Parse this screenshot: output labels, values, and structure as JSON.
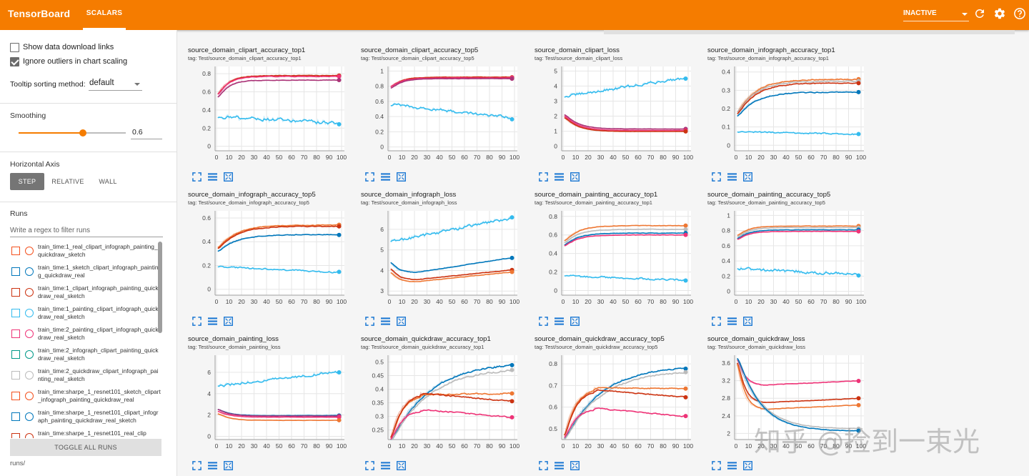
{
  "topbar": {
    "brand": "TensorBoard",
    "tab_scalars": "SCALARS",
    "status_select": "INACTIVE",
    "icons": [
      "refresh-icon",
      "settings-icon",
      "help-icon"
    ]
  },
  "sidebar": {
    "show_download": "Show data download links",
    "ignore_outliers": "Ignore outliers in chart scaling",
    "tooltip_label": "Tooltip sorting method:",
    "tooltip_value": "default",
    "smoothing_label": "Smoothing",
    "smoothing_value": "0.6",
    "smoothing_fraction": 0.6,
    "haxis_label": "Horizontal Axis",
    "haxis_options": [
      "STEP",
      "RELATIVE",
      "WALL"
    ],
    "runs_label": "Runs",
    "runs_filter_placeholder": "Write a regex to filter runs",
    "toggle_all": "TOGGLE ALL RUNS",
    "footer": "runs/",
    "runs": [
      {
        "label": "train_time:1_real_clipart_infograph_painting_quickdraw_sketch",
        "color": "#f4511e"
      },
      {
        "label": "train_time:1_sketch_clipart_infograph_painting_quickdraw_real",
        "color": "#0077bb"
      },
      {
        "label": "train_time:1_clipart_infograph_painting_quickdraw_real_sketch",
        "color": "#cc3311"
      },
      {
        "label": "train_time:1_painting_clipart_infograph_quickdraw_real_sketch",
        "color": "#33bbee"
      },
      {
        "label": "train_time:2_painting_clipart_infograph_quickdraw_real_sketch",
        "color": "#ee3377"
      },
      {
        "label": "train_time:2_infograph_clipart_painting_quickdraw_real_sketch",
        "color": "#009988"
      },
      {
        "label": "train_time:2_quickdraw_clipart_infograph_painting_real_sketch",
        "color": "#bbbbbb"
      },
      {
        "label": "train_time:sharpe_1_resnet101_sketch_clipart_infograph_painting_quickdraw_real",
        "color": "#f4511e"
      },
      {
        "label": "train_time:sharpe_1_resnet101_clipart_infograph_painting_quickdraw_real_sketch",
        "color": "#0077bb"
      },
      {
        "label": "train_time:sharpe_1_resnet101_real_clip",
        "color": "#cc3311"
      }
    ]
  },
  "watermark": "知乎 @捡到一束光",
  "chart_data": [
    {
      "type": "line",
      "title": "source_domain_clipart_accuracy_top1",
      "tag": "tag: Test/source_domain_clipart_accuracy_top1",
      "x_ticks": [
        0,
        10,
        20,
        30,
        40,
        50,
        60,
        70,
        80,
        90,
        100
      ],
      "y_ticks": [
        0,
        0.2,
        0.4,
        0.6,
        0.8
      ],
      "y_tick_labels": [
        "0",
        "0.2",
        "0.4",
        "0.6",
        "0.8"
      ],
      "ylim": [
        -0.05,
        0.88
      ],
      "xlim": [
        0,
        100
      ],
      "series": [
        {
          "color": "#cc3311",
          "profile": "sat",
          "start": 0.55,
          "end": 0.78,
          "k": 8,
          "noise": 0.005
        },
        {
          "color": "#ee3377",
          "profile": "sat",
          "start": 0.55,
          "end": 0.77,
          "k": 8,
          "noise": 0.005
        },
        {
          "color": "#aa3377",
          "profile": "sat",
          "start": 0.52,
          "end": 0.73,
          "k": 8,
          "noise": 0.005
        },
        {
          "color": "#33bbee",
          "profile": "lin",
          "start": 0.33,
          "end": 0.25,
          "k": 0,
          "noise": 0.03
        }
      ]
    },
    {
      "type": "line",
      "title": "source_domain_clipart_accuracy_top5",
      "tag": "tag: Test/source_domain_clipart_accuracy_top5",
      "x_ticks": [
        0,
        10,
        20,
        30,
        40,
        50,
        60,
        70,
        80,
        90,
        100
      ],
      "y_ticks": [
        0,
        0.2,
        0.4,
        0.6,
        0.8,
        1
      ],
      "y_tick_labels": [
        "0",
        "0.2",
        "0.4",
        "0.6",
        "0.8",
        "1"
      ],
      "ylim": [
        -0.05,
        1.06
      ],
      "xlim": [
        0,
        100
      ],
      "series": [
        {
          "color": "#cc3311",
          "profile": "sat",
          "start": 0.78,
          "end": 0.92,
          "k": 8,
          "noise": 0.004
        },
        {
          "color": "#ee3377",
          "profile": "sat",
          "start": 0.78,
          "end": 0.91,
          "k": 8,
          "noise": 0.004
        },
        {
          "color": "#aa3377",
          "profile": "sat",
          "start": 0.76,
          "end": 0.9,
          "k": 8,
          "noise": 0.004
        },
        {
          "color": "#33bbee",
          "profile": "lin",
          "start": 0.56,
          "end": 0.38,
          "k": 0,
          "noise": 0.03
        }
      ]
    },
    {
      "type": "line",
      "title": "source_domain_clipart_loss",
      "tag": "tag: Test/source_domain_clipart_loss",
      "x_ticks": [
        0,
        10,
        20,
        30,
        40,
        50,
        60,
        70,
        80,
        90,
        100
      ],
      "y_ticks": [
        0,
        1,
        2,
        3,
        4,
        5
      ],
      "y_tick_labels": [
        "0",
        "1",
        "2",
        "3",
        "4",
        "5"
      ],
      "ylim": [
        -0.3,
        5.3
      ],
      "xlim": [
        0,
        100
      ],
      "series": [
        {
          "color": "#33bbee",
          "profile": "lin",
          "start": 3.3,
          "end": 4.6,
          "k": 0,
          "noise": 0.15
        },
        {
          "color": "#aa3377",
          "profile": "decay",
          "start": 2.2,
          "end": 1.15,
          "k": 10,
          "noise": 0.01
        },
        {
          "color": "#ee3377",
          "profile": "decay",
          "start": 2.1,
          "end": 1.05,
          "k": 10,
          "noise": 0.01
        },
        {
          "color": "#cc3311",
          "profile": "decay",
          "start": 2.0,
          "end": 0.98,
          "k": 10,
          "noise": 0.01
        }
      ]
    },
    {
      "type": "line",
      "title": "source_domain_infograph_accuracy_top1",
      "tag": "tag: Test/source_domain_infograph_accuracy_top1",
      "x_ticks": [
        0,
        10,
        20,
        30,
        40,
        50,
        60,
        70,
        80,
        90,
        100
      ],
      "y_ticks": [
        0,
        0.1,
        0.2,
        0.3,
        0.4
      ],
      "y_tick_labels": [
        "0",
        "0.1",
        "0.2",
        "0.3",
        "0.4"
      ],
      "ylim": [
        -0.03,
        0.43
      ],
      "xlim": [
        0,
        100
      ],
      "series": [
        {
          "color": "#ee7733",
          "profile": "sat",
          "start": 0.17,
          "end": 0.36,
          "k": 14,
          "noise": 0.004
        },
        {
          "color": "#bbbbbb",
          "profile": "sat",
          "start": 0.17,
          "end": 0.35,
          "k": 14,
          "noise": 0.004
        },
        {
          "color": "#cc3311",
          "profile": "sat",
          "start": 0.16,
          "end": 0.34,
          "k": 14,
          "noise": 0.004
        },
        {
          "color": "#0077bb",
          "profile": "sat",
          "start": 0.15,
          "end": 0.29,
          "k": 14,
          "noise": 0.004
        },
        {
          "color": "#33bbee",
          "profile": "lin",
          "start": 0.075,
          "end": 0.06,
          "k": 0,
          "noise": 0.006
        }
      ]
    },
    {
      "type": "line",
      "title": "source_domain_infograph_accuracy_top5",
      "tag": "tag: Test/source_domain_infograph_accuracy_top5",
      "x_ticks": [
        0,
        10,
        20,
        30,
        40,
        50,
        60,
        70,
        80,
        90,
        100
      ],
      "y_ticks": [
        0,
        0.2,
        0.4,
        0.6
      ],
      "y_tick_labels": [
        "0",
        "0.2",
        "0.4",
        "0.6"
      ],
      "ylim": [
        -0.05,
        0.66
      ],
      "xlim": [
        0,
        100
      ],
      "series": [
        {
          "color": "#ee7733",
          "profile": "sat",
          "start": 0.34,
          "end": 0.54,
          "k": 14,
          "noise": 0.005
        },
        {
          "color": "#cc3311",
          "profile": "sat",
          "start": 0.33,
          "end": 0.53,
          "k": 14,
          "noise": 0.005
        },
        {
          "color": "#0077bb",
          "profile": "sat",
          "start": 0.31,
          "end": 0.46,
          "k": 14,
          "noise": 0.005
        },
        {
          "color": "#33bbee",
          "profile": "lin",
          "start": 0.19,
          "end": 0.14,
          "k": 0,
          "noise": 0.01
        }
      ]
    },
    {
      "type": "line",
      "title": "source_domain_infograph_loss",
      "tag": "tag: Test/source_domain_infograph_loss",
      "x_ticks": [
        0,
        10,
        20,
        30,
        40,
        50,
        60,
        70,
        80,
        90,
        100
      ],
      "y_ticks": [
        3,
        4,
        5,
        6
      ],
      "y_tick_labels": [
        "3",
        "4",
        "5",
        "6"
      ],
      "ylim": [
        2.8,
        6.9
      ],
      "xlim": [
        0,
        100
      ],
      "series": [
        {
          "color": "#33bbee",
          "profile": "lin",
          "start": 5.4,
          "end": 6.6,
          "k": 0,
          "noise": 0.12
        },
        {
          "color": "#0077bb",
          "profile": "uloss",
          "start": 4.5,
          "end": 4.65,
          "k": 3.9,
          "noise": 0.02
        },
        {
          "color": "#cc3311",
          "profile": "uloss",
          "start": 4.2,
          "end": 4.05,
          "k": 3.55,
          "noise": 0.02
        },
        {
          "color": "#ee7733",
          "profile": "uloss",
          "start": 4.0,
          "end": 3.95,
          "k": 3.45,
          "noise": 0.02
        }
      ]
    },
    {
      "type": "line",
      "title": "source_domain_painting_accuracy_top1",
      "tag": "tag: Test/source_domain_painting_accuracy_top1",
      "x_ticks": [
        0,
        10,
        20,
        30,
        40,
        50,
        60,
        70,
        80,
        90,
        100
      ],
      "y_ticks": [
        0,
        0.2,
        0.4,
        0.6,
        0.8
      ],
      "y_tick_labels": [
        "0",
        "0.2",
        "0.4",
        "0.6",
        "0.8"
      ],
      "ylim": [
        -0.05,
        0.86
      ],
      "xlim": [
        0,
        100
      ],
      "series": [
        {
          "color": "#ee7733",
          "profile": "sat",
          "start": 0.52,
          "end": 0.7,
          "k": 10,
          "noise": 0.004
        },
        {
          "color": "#bbbbbb",
          "profile": "sat",
          "start": 0.5,
          "end": 0.66,
          "k": 10,
          "noise": 0.004
        },
        {
          "color": "#0077bb",
          "profile": "sat",
          "start": 0.48,
          "end": 0.62,
          "k": 10,
          "noise": 0.004
        },
        {
          "color": "#ee3377",
          "profile": "sat",
          "start": 0.47,
          "end": 0.6,
          "k": 10,
          "noise": 0.004
        },
        {
          "color": "#33bbee",
          "profile": "lin",
          "start": 0.16,
          "end": 0.11,
          "k": 0,
          "noise": 0.015
        }
      ]
    },
    {
      "type": "line",
      "title": "source_domain_painting_accuracy_top5",
      "tag": "tag: Test/source_domain_painting_accuracy_top5",
      "x_ticks": [
        0,
        10,
        20,
        30,
        40,
        50,
        60,
        70,
        80,
        90,
        100
      ],
      "y_ticks": [
        0,
        0.2,
        0.4,
        0.6,
        0.8,
        1
      ],
      "y_tick_labels": [
        "0",
        "0.2",
        "0.4",
        "0.6",
        "0.8",
        "1"
      ],
      "ylim": [
        -0.05,
        1.06
      ],
      "xlim": [
        0,
        100
      ],
      "series": [
        {
          "color": "#ee7733",
          "profile": "sat",
          "start": 0.72,
          "end": 0.86,
          "k": 8,
          "noise": 0.004
        },
        {
          "color": "#bbbbbb",
          "profile": "sat",
          "start": 0.7,
          "end": 0.84,
          "k": 8,
          "noise": 0.004
        },
        {
          "color": "#0077bb",
          "profile": "sat",
          "start": 0.68,
          "end": 0.81,
          "k": 8,
          "noise": 0.004
        },
        {
          "color": "#ee3377",
          "profile": "sat",
          "start": 0.67,
          "end": 0.79,
          "k": 8,
          "noise": 0.004
        },
        {
          "color": "#33bbee",
          "profile": "lin",
          "start": 0.3,
          "end": 0.22,
          "k": 0,
          "noise": 0.03
        }
      ]
    },
    {
      "type": "line",
      "title": "source_domain_painting_loss",
      "tag": "tag: Test/source_domain_painting_loss",
      "x_ticks": [
        0,
        10,
        20,
        30,
        40,
        50,
        60,
        70,
        80,
        90,
        100
      ],
      "y_ticks": [
        0,
        2,
        4,
        6
      ],
      "y_tick_labels": [
        "0",
        "2",
        "4",
        "6"
      ],
      "ylim": [
        -0.3,
        7.6
      ],
      "xlim": [
        0,
        100
      ],
      "series": [
        {
          "color": "#33bbee",
          "profile": "lin",
          "start": 4.7,
          "end": 6.1,
          "k": 0,
          "noise": 0.2
        },
        {
          "color": "#0077bb",
          "profile": "decay",
          "start": 2.6,
          "end": 1.95,
          "k": 8,
          "noise": 0.02
        },
        {
          "color": "#aa3377",
          "profile": "decay",
          "start": 2.6,
          "end": 1.9,
          "k": 8,
          "noise": 0.02
        },
        {
          "color": "#ee3377",
          "profile": "decay",
          "start": 2.4,
          "end": 1.8,
          "k": 8,
          "noise": 0.02
        },
        {
          "color": "#ee7733",
          "profile": "decay",
          "start": 2.2,
          "end": 1.5,
          "k": 8,
          "noise": 0.02
        }
      ]
    },
    {
      "type": "line",
      "title": "source_domain_quickdraw_accuracy_top1",
      "tag": "tag: Test/source_domain_quickdraw_accuracy_top1",
      "x_ticks": [
        0,
        10,
        20,
        30,
        40,
        50,
        60,
        70,
        80,
        90,
        100
      ],
      "y_ticks": [
        0.25,
        0.3,
        0.35,
        0.4,
        0.45,
        0.5
      ],
      "y_tick_labels": [
        "0.25",
        "0.3",
        "0.35",
        "0.4",
        "0.45",
        "0.5"
      ],
      "ylim": [
        0.215,
        0.525
      ],
      "xlim": [
        0,
        100
      ],
      "series": [
        {
          "color": "#0077bb",
          "profile": "sat",
          "start": 0.2,
          "end": 0.5,
          "k": 30,
          "noise": 0.005
        },
        {
          "color": "#bbbbbb",
          "profile": "sat",
          "start": 0.2,
          "end": 0.48,
          "k": 30,
          "noise": 0.005
        },
        {
          "color": "#ee7733",
          "profile": "hump",
          "start": 0.2,
          "end": 0.385,
          "k": 0.38,
          "noise": 0.004
        },
        {
          "color": "#cc3311",
          "profile": "hump",
          "start": 0.2,
          "end": 0.355,
          "k": 0.385,
          "noise": 0.004
        },
        {
          "color": "#ee3377",
          "profile": "hump",
          "start": 0.2,
          "end": 0.295,
          "k": 0.325,
          "noise": 0.004
        }
      ]
    },
    {
      "type": "line",
      "title": "source_domain_quickdraw_accuracy_top5",
      "tag": "tag: Test/source_domain_quickdraw_accuracy_top5",
      "x_ticks": [
        0,
        10,
        20,
        30,
        40,
        50,
        60,
        70,
        80,
        90,
        100
      ],
      "y_ticks": [
        0.5,
        0.6,
        0.7,
        0.8
      ],
      "y_tick_labels": [
        "0.5",
        "0.6",
        "0.7",
        "0.8"
      ],
      "ylim": [
        0.45,
        0.84
      ],
      "xlim": [
        0,
        100
      ],
      "series": [
        {
          "color": "#0077bb",
          "profile": "sat",
          "start": 0.44,
          "end": 0.79,
          "k": 28,
          "noise": 0.005
        },
        {
          "color": "#bbbbbb",
          "profile": "sat",
          "start": 0.44,
          "end": 0.77,
          "k": 28,
          "noise": 0.005
        },
        {
          "color": "#ee7733",
          "profile": "hump",
          "start": 0.44,
          "end": 0.685,
          "k": 0.69,
          "noise": 0.004
        },
        {
          "color": "#cc3311",
          "profile": "hump",
          "start": 0.44,
          "end": 0.645,
          "k": 0.68,
          "noise": 0.004
        },
        {
          "color": "#ee3377",
          "profile": "hump",
          "start": 0.44,
          "end": 0.555,
          "k": 0.595,
          "noise": 0.004
        }
      ]
    },
    {
      "type": "line",
      "title": "source_domain_quickdraw_loss",
      "tag": "tag: Test/source_domain_quickdraw_loss",
      "x_ticks": [
        0,
        10,
        20,
        30,
        40,
        50,
        60,
        70,
        80,
        90,
        100
      ],
      "y_ticks": [
        2,
        2.4,
        2.8,
        3.2,
        3.6
      ],
      "y_tick_labels": [
        "2",
        "2.4",
        "2.8",
        "3.2",
        "3.6"
      ],
      "ylim": [
        1.86,
        3.78
      ],
      "xlim": [
        0,
        100
      ],
      "series": [
        {
          "color": "#ee3377",
          "profile": "uloss",
          "start": 3.8,
          "end": 3.2,
          "k": 3.1,
          "noise": 0.01
        },
        {
          "color": "#cc3311",
          "profile": "uloss",
          "start": 3.8,
          "end": 2.8,
          "k": 2.7,
          "noise": 0.01
        },
        {
          "color": "#ee7733",
          "profile": "uloss",
          "start": 3.8,
          "end": 2.65,
          "k": 2.55,
          "noise": 0.01
        },
        {
          "color": "#bbbbbb",
          "profile": "decay",
          "start": 3.8,
          "end": 2.1,
          "k": 18,
          "noise": 0.01
        },
        {
          "color": "#0077bb",
          "profile": "decay",
          "start": 3.8,
          "end": 2.05,
          "k": 18,
          "noise": 0.01
        }
      ]
    }
  ]
}
